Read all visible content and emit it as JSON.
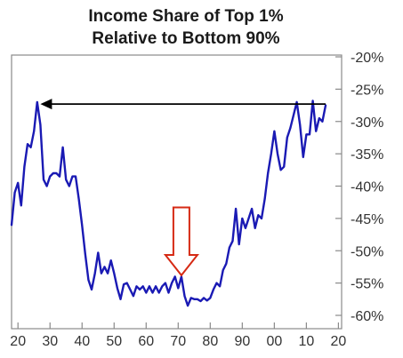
{
  "chart_data": {
    "type": "line",
    "title_lines": [
      "Income Share of Top 1%",
      "Relative to Bottom 90%"
    ],
    "xlabel": "",
    "ylabel": "",
    "x_tick_labels": [
      "20",
      "30",
      "40",
      "50",
      "60",
      "70",
      "80",
      "90",
      "00",
      "10",
      "20"
    ],
    "x_ticks": [
      1920,
      1930,
      1940,
      1950,
      1960,
      1970,
      1980,
      1990,
      2000,
      2010,
      2020
    ],
    "xlim": [
      1918,
      2021
    ],
    "y_tick_labels": [
      "-20%",
      "-25%",
      "-30%",
      "-35%",
      "-40%",
      "-45%",
      "-50%",
      "-55%",
      "-60%"
    ],
    "y_ticks": [
      -20,
      -25,
      -30,
      -35,
      -40,
      -45,
      -50,
      -55,
      -60
    ],
    "ylim": [
      -60,
      -20
    ],
    "y_axis_side": "right",
    "grid": false,
    "series": [
      {
        "color": "#1a1ab4",
        "x": [
          1918,
          1919,
          1920,
          1921,
          1922,
          1923,
          1924,
          1925,
          1926,
          1927,
          1928,
          1929,
          1930,
          1931,
          1932,
          1933,
          1934,
          1935,
          1936,
          1937,
          1938,
          1939,
          1940,
          1941,
          1942,
          1943,
          1944,
          1945,
          1946,
          1947,
          1948,
          1949,
          1950,
          1951,
          1952,
          1953,
          1954,
          1955,
          1956,
          1957,
          1958,
          1959,
          1960,
          1961,
          1962,
          1963,
          1964,
          1965,
          1966,
          1967,
          1968,
          1969,
          1970,
          1971,
          1972,
          1973,
          1974,
          1975,
          1976,
          1977,
          1978,
          1979,
          1980,
          1981,
          1982,
          1983,
          1984,
          1985,
          1986,
          1987,
          1988,
          1989,
          1990,
          1991,
          1992,
          1993,
          1994,
          1995,
          1996,
          1997,
          1998,
          1999,
          2000,
          2001,
          2002,
          2003,
          2004,
          2005,
          2006,
          2007,
          2008,
          2009,
          2010,
          2011,
          2012,
          2013,
          2014,
          2015,
          2016
        ],
        "y": [
          -46,
          -41,
          -39.5,
          -43,
          -37,
          -33.5,
          -34,
          -31.5,
          -27,
          -30.5,
          -39,
          -40,
          -38.5,
          -38,
          -38,
          -38.5,
          -34,
          -39,
          -40,
          -38.5,
          -38.5,
          -42,
          -46,
          -50.5,
          -54.5,
          -56,
          -53.5,
          -50.3,
          -53.5,
          -52.5,
          -53.5,
          -51.5,
          -53.5,
          -55.8,
          -57.5,
          -55.2,
          -55,
          -56,
          -57,
          -55.5,
          -56,
          -55.5,
          -56.5,
          -55.5,
          -56.5,
          -55.5,
          -56.5,
          -55.5,
          -55,
          -56.5,
          -55,
          -54,
          -55.8,
          -54,
          -57,
          -58.5,
          -57.3,
          -57.5,
          -57.5,
          -57.8,
          -57.3,
          -57.7,
          -57.3,
          -56,
          -55,
          -55.5,
          -53,
          -52,
          -49.5,
          -48.5,
          -43.5,
          -49,
          -45,
          -46.5,
          -45,
          -43.5,
          -46.5,
          -44.5,
          -45,
          -42,
          -38,
          -35,
          -31.5,
          -35,
          -37.5,
          -37,
          -32.5,
          -31,
          -29,
          -27,
          -30.5,
          -35.5,
          -32,
          -32,
          -26.8,
          -31.5,
          -29.5,
          -30,
          -27.5
        ]
      }
    ],
    "annotations": [
      {
        "type": "horizontal-arrow",
        "x_start": 2016,
        "x_end": 1927,
        "y": -27.3,
        "color": "#000000"
      },
      {
        "type": "down-arrow",
        "x": 1971,
        "y_top": -43.3,
        "y_tip": -53.8,
        "color": "#d62a14"
      }
    ]
  }
}
